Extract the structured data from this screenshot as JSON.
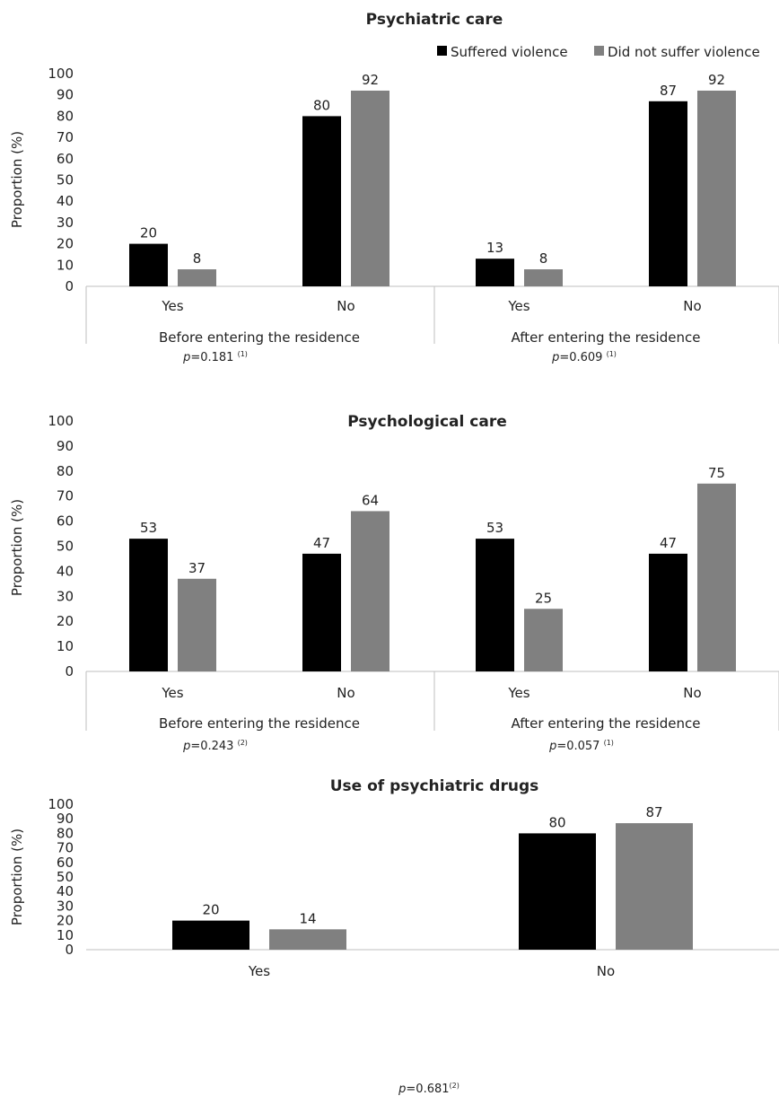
{
  "colors": {
    "series1": "#000000",
    "series2": "#808080",
    "axis": "#bfbfbf"
  },
  "legend": [
    {
      "label": "Suffered violence",
      "color": "#000000"
    },
    {
      "label": "Did not suffer violence",
      "color": "#808080"
    }
  ],
  "chart_data": [
    {
      "type": "bar",
      "title": "Psychiatric care",
      "ylabel": "Proportion (%)",
      "ylim": [
        0,
        100
      ],
      "yticks": [
        0,
        10,
        20,
        30,
        40,
        50,
        60,
        70,
        80,
        90,
        100
      ],
      "legend_position": "top-right",
      "categories": [
        "Yes",
        "No",
        "Yes",
        "No"
      ],
      "groups": [
        {
          "label": "Before entering the residence",
          "p_prefix": "p",
          "p_text": "=0.181 ",
          "p_note": "(1)"
        },
        {
          "label": "After entering the residence",
          "p_prefix": "p",
          "p_text": "=0.609 ",
          "p_note": "(1)"
        }
      ],
      "series": [
        {
          "name": "Suffered violence",
          "values": [
            20,
            80,
            13,
            87
          ]
        },
        {
          "name": "Did not suffer violence",
          "values": [
            8,
            92,
            8,
            92
          ]
        }
      ]
    },
    {
      "type": "bar",
      "title": "Psychological care",
      "ylabel": "Proportion (%)",
      "ylim": [
        0,
        100
      ],
      "yticks": [
        0,
        10,
        20,
        30,
        40,
        50,
        60,
        70,
        80,
        90,
        100
      ],
      "categories": [
        "Yes",
        "No",
        "Yes",
        "No"
      ],
      "groups": [
        {
          "label": "Before entering the residence",
          "p_prefix": "p",
          "p_text": "=0.243 ",
          "p_note": "(2)"
        },
        {
          "label": "After entering the residence",
          "p_prefix": "p",
          "p_text": "=0.057 ",
          "p_note": "(1)"
        }
      ],
      "series": [
        {
          "name": "Suffered violence",
          "values": [
            53,
            47,
            53,
            47
          ]
        },
        {
          "name": "Did not suffer violence",
          "values": [
            37,
            64,
            25,
            75
          ]
        }
      ]
    },
    {
      "type": "bar",
      "title": "Use of psychiatric drugs",
      "ylabel": "Proportion (%)",
      "ylim": [
        0,
        100
      ],
      "yticks": [
        0,
        10,
        20,
        30,
        40,
        50,
        60,
        70,
        80,
        90,
        100
      ],
      "categories": [
        "Yes",
        "No"
      ],
      "groups": [
        {
          "label": "",
          "p_prefix": "p",
          "p_text": "=0.681",
          "p_note": "(2)"
        }
      ],
      "series": [
        {
          "name": "Suffered violence",
          "values": [
            20,
            80
          ]
        },
        {
          "name": "Did not suffer violence",
          "values": [
            14,
            87
          ]
        }
      ]
    }
  ]
}
